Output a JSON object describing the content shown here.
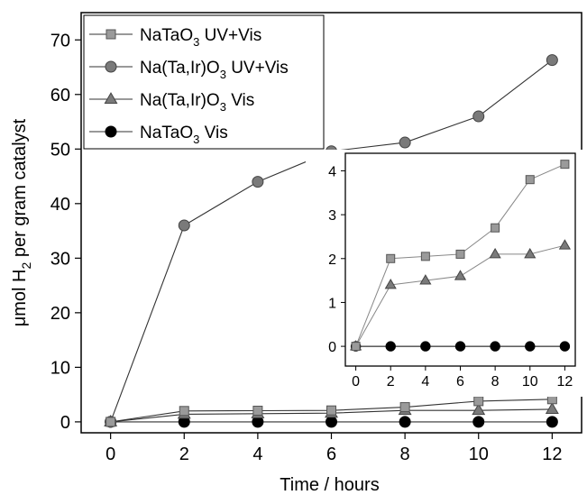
{
  "chart_data": [
    {
      "type": "line",
      "xlabel": "Time / hours",
      "ylabel": {
        "pre": "μmol H",
        "sub": "2",
        "post": " per gram catalyst"
      },
      "x": [
        0,
        2,
        4,
        6,
        8,
        10,
        12
      ],
      "xlim": [
        -0.8,
        12.8
      ],
      "ylim": [
        -2,
        75
      ],
      "xticks": [
        0,
        2,
        4,
        6,
        8,
        10,
        12
      ],
      "yticks": [
        0,
        10,
        20,
        30,
        40,
        50,
        60,
        70
      ],
      "grid": false,
      "legend_position": "top-left",
      "series": [
        {
          "key": "s1",
          "marker": "square",
          "color": "#9a9a9a",
          "legend": {
            "pre": "NaTaO",
            "sub": "3",
            "post": " UV+Vis"
          },
          "values": [
            0,
            2.0,
            2.05,
            2.1,
            2.7,
            3.8,
            4.15
          ]
        },
        {
          "key": "s2",
          "marker": "circle",
          "color": "#7a7a7a",
          "legend": {
            "pre": "Na(Ta,Ir)O",
            "sub": "3",
            "post": " UV+Vis"
          },
          "values": [
            0,
            36,
            44,
            49.6,
            51.2,
            56,
            66.3
          ]
        },
        {
          "key": "s3",
          "marker": "triangle",
          "color": "#7a7a7a",
          "legend": {
            "pre": "Na(Ta,Ir)O",
            "sub": "3",
            "post": " Vis"
          },
          "values": [
            0,
            1.4,
            1.5,
            1.6,
            2.1,
            2.1,
            2.3
          ]
        },
        {
          "key": "s4",
          "marker": "circle",
          "color": "#000000",
          "legend": {
            "pre": "NaTaO",
            "sub": "3",
            "post": " Vis"
          },
          "values": [
            0,
            0,
            0,
            0,
            0,
            0,
            0
          ]
        }
      ]
    },
    {
      "type": "line",
      "role": "inset",
      "x": [
        0,
        2,
        4,
        6,
        8,
        10,
        12
      ],
      "xlim": [
        -0.6,
        12.6
      ],
      "ylim": [
        -0.45,
        4.4
      ],
      "xticks": [
        0,
        2,
        4,
        6,
        8,
        10,
        12
      ],
      "yticks": [
        0,
        1,
        2,
        3,
        4
      ],
      "series": [
        {
          "key": "s1",
          "marker": "square",
          "color": "#9a9a9a",
          "values": [
            0,
            2.0,
            2.05,
            2.1,
            2.7,
            3.8,
            4.15
          ]
        },
        {
          "key": "s3",
          "marker": "triangle",
          "color": "#7a7a7a",
          "values": [
            0,
            1.4,
            1.5,
            1.6,
            2.1,
            2.1,
            2.3
          ]
        },
        {
          "key": "s4",
          "marker": "circle",
          "color": "#000000",
          "values": [
            0,
            0,
            0,
            0,
            0,
            0,
            0
          ]
        }
      ]
    }
  ]
}
